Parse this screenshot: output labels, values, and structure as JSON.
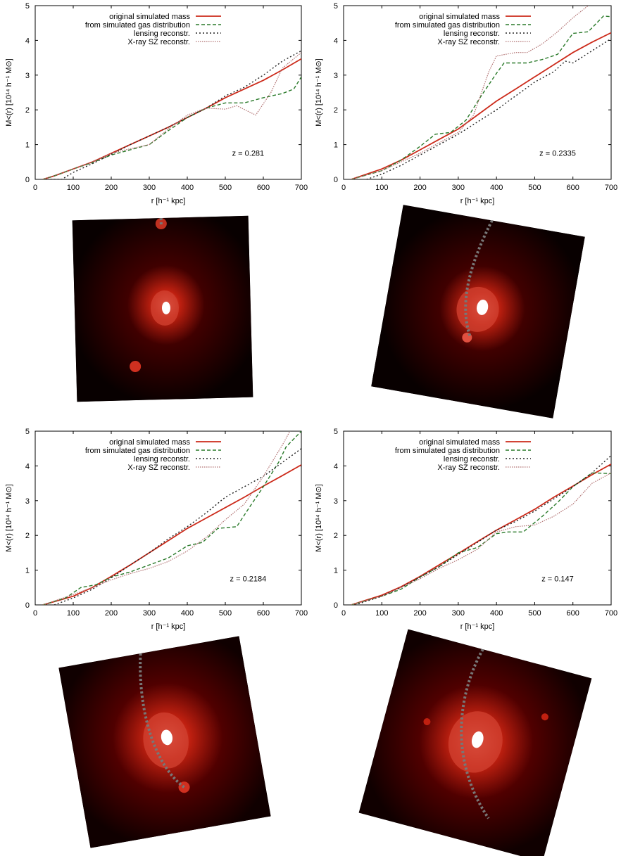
{
  "legend_labels": [
    "original simulated mass",
    "from simulated gas distribution",
    "lensing reconstr.",
    "X-ray SZ reconstr."
  ],
  "series_colors": [
    "#cc2a1a",
    "#2a7a2a",
    "#222222",
    "#b07070"
  ],
  "chart_data": [
    {
      "type": "line",
      "annotation": "z = 0.281",
      "xlabel": "r [h⁻¹ kpc]",
      "ylabel": "M<(r) [10¹⁴ h⁻¹ M⊙]",
      "xlim": [
        0,
        700
      ],
      "ylim": [
        0,
        5
      ],
      "xticks": [
        0,
        100,
        200,
        300,
        400,
        500,
        600,
        700
      ],
      "yticks": [
        0,
        1,
        2,
        3,
        4,
        5
      ],
      "legend": "top-right",
      "series": [
        {
          "name": "original simulated mass",
          "x": [
            20,
            50,
            100,
            150,
            200,
            250,
            300,
            350,
            400,
            450,
            500,
            550,
            600,
            650,
            700
          ],
          "y": [
            0,
            0.1,
            0.3,
            0.5,
            0.75,
            1.0,
            1.25,
            1.5,
            1.78,
            2.05,
            2.35,
            2.6,
            2.85,
            3.15,
            3.47
          ]
        },
        {
          "name": "from simulated gas distribution",
          "x": [
            20,
            50,
            100,
            150,
            200,
            250,
            300,
            350,
            400,
            450,
            500,
            550,
            600,
            650,
            680,
            700
          ],
          "y": [
            0,
            0.1,
            0.3,
            0.48,
            0.7,
            0.85,
            1.0,
            1.4,
            1.78,
            2.05,
            2.2,
            2.2,
            2.35,
            2.47,
            2.6,
            2.95
          ]
        },
        {
          "name": "lensing reconstr.",
          "x": [
            40,
            70,
            100,
            150,
            200,
            250,
            300,
            350,
            400,
            450,
            500,
            550,
            600,
            650,
            700
          ],
          "y": [
            0,
            0,
            0.2,
            0.45,
            0.72,
            1.0,
            1.25,
            1.5,
            1.78,
            2.05,
            2.4,
            2.65,
            3.0,
            3.4,
            3.7
          ]
        },
        {
          "name": "X-ray SZ reconstr.",
          "x": [
            20,
            100,
            150,
            200,
            250,
            300,
            350,
            400,
            450,
            500,
            530,
            580,
            620,
            650,
            700
          ],
          "y": [
            0,
            0.3,
            0.5,
            0.75,
            0.88,
            1.0,
            1.45,
            1.85,
            2.05,
            2.02,
            2.12,
            1.85,
            2.5,
            3.2,
            3.65
          ]
        }
      ]
    },
    {
      "type": "line",
      "annotation": "z = 0.2335",
      "xlabel": "r [h⁻¹ kpc]",
      "ylabel": "M<(r) [10¹⁴ h⁻¹ M⊙]",
      "xlim": [
        0,
        700
      ],
      "ylim": [
        0,
        5
      ],
      "xticks": [
        0,
        100,
        200,
        300,
        400,
        500,
        600,
        700
      ],
      "yticks": [
        0,
        1,
        2,
        3,
        4,
        5
      ],
      "legend": "top-right",
      "series": [
        {
          "name": "original simulated mass",
          "x": [
            20,
            100,
            150,
            200,
            250,
            300,
            350,
            400,
            450,
            500,
            550,
            600,
            650,
            700
          ],
          "y": [
            0,
            0.3,
            0.55,
            0.85,
            1.15,
            1.45,
            1.85,
            2.25,
            2.6,
            2.95,
            3.3,
            3.65,
            3.95,
            4.22
          ]
        },
        {
          "name": "from simulated gas distribution",
          "x": [
            20,
            100,
            150,
            200,
            240,
            280,
            320,
            360,
            400,
            420,
            480,
            520,
            560,
            600,
            640,
            680,
            700
          ],
          "y": [
            0,
            0.25,
            0.55,
            0.95,
            1.3,
            1.35,
            1.7,
            2.4,
            3.05,
            3.35,
            3.35,
            3.45,
            3.6,
            4.2,
            4.25,
            4.7,
            4.68
          ]
        },
        {
          "name": "lensing reconstr.",
          "x": [
            60,
            100,
            150,
            200,
            250,
            300,
            350,
            400,
            450,
            500,
            550,
            580,
            600,
            650,
            700
          ],
          "y": [
            0,
            0.15,
            0.4,
            0.7,
            1.0,
            1.3,
            1.65,
            2.0,
            2.4,
            2.8,
            3.1,
            3.4,
            3.35,
            3.7,
            4.05
          ]
        },
        {
          "name": "X-ray SZ reconstr.",
          "x": [
            20,
            100,
            150,
            200,
            250,
            300,
            340,
            380,
            400,
            450,
            480,
            520,
            560,
            600,
            640,
            700
          ],
          "y": [
            0,
            0.25,
            0.5,
            0.75,
            1.05,
            1.35,
            1.85,
            3.1,
            3.55,
            3.65,
            3.65,
            3.9,
            4.25,
            4.65,
            5.0,
            5.5
          ]
        }
      ]
    },
    {
      "type": "line",
      "annotation": "z = 0.2184",
      "xlabel": "r [h⁻¹ kpc]",
      "ylabel": "M<(r) [10¹⁴ h⁻¹ M⊙]",
      "xlim": [
        0,
        700
      ],
      "ylim": [
        0,
        5
      ],
      "xticks": [
        0,
        100,
        200,
        300,
        400,
        500,
        600,
        700
      ],
      "yticks": [
        0,
        1,
        2,
        3,
        4,
        5
      ],
      "legend": "top-right",
      "series": [
        {
          "name": "original simulated mass",
          "x": [
            20,
            100,
            150,
            200,
            250,
            300,
            350,
            400,
            450,
            500,
            550,
            600,
            650,
            700
          ],
          "y": [
            0,
            0.25,
            0.5,
            0.82,
            1.15,
            1.5,
            1.85,
            2.2,
            2.5,
            2.8,
            3.1,
            3.42,
            3.72,
            4.03
          ]
        },
        {
          "name": "from simulated gas distribution",
          "x": [
            20,
            80,
            100,
            120,
            160,
            200,
            250,
            300,
            350,
            400,
            440,
            480,
            530,
            560,
            600,
            640,
            660,
            700
          ],
          "y": [
            0,
            0.2,
            0.35,
            0.5,
            0.58,
            0.8,
            0.95,
            1.15,
            1.35,
            1.7,
            1.8,
            2.2,
            2.25,
            2.75,
            3.4,
            4.1,
            4.55,
            5.0
          ]
        },
        {
          "name": "lensing reconstr.",
          "x": [
            50,
            100,
            150,
            200,
            250,
            300,
            350,
            400,
            450,
            500,
            550,
            600,
            650,
            700
          ],
          "y": [
            0,
            0.2,
            0.45,
            0.78,
            1.15,
            1.5,
            1.9,
            2.25,
            2.65,
            3.1,
            3.4,
            3.7,
            4.1,
            4.5
          ]
        },
        {
          "name": "X-ray SZ reconstr.",
          "x": [
            20,
            100,
            150,
            200,
            250,
            300,
            350,
            400,
            450,
            500,
            550,
            600,
            650,
            680
          ],
          "y": [
            0,
            0.3,
            0.5,
            0.72,
            0.9,
            1.05,
            1.25,
            1.55,
            1.95,
            2.45,
            2.9,
            3.7,
            4.6,
            5.2
          ]
        }
      ]
    },
    {
      "type": "line",
      "annotation": "z = 0.147",
      "xlabel": "r [h⁻¹ kpc]",
      "ylabel": "M<(r) [10¹⁴ h⁻¹ M⊙]",
      "xlim": [
        0,
        700
      ],
      "ylim": [
        0,
        5
      ],
      "xticks": [
        0,
        100,
        200,
        300,
        400,
        500,
        600,
        700
      ],
      "yticks": [
        0,
        1,
        2,
        3,
        4,
        5
      ],
      "legend": "top-right",
      "series": [
        {
          "name": "original simulated mass",
          "x": [
            20,
            100,
            150,
            200,
            250,
            300,
            350,
            400,
            450,
            500,
            550,
            600,
            650,
            700
          ],
          "y": [
            0,
            0.28,
            0.52,
            0.82,
            1.15,
            1.48,
            1.82,
            2.15,
            2.45,
            2.75,
            3.1,
            3.42,
            3.75,
            4.05
          ]
        },
        {
          "name": "from simulated gas distribution",
          "x": [
            20,
            100,
            150,
            200,
            250,
            300,
            350,
            400,
            430,
            470,
            520,
            560,
            600,
            650,
            700
          ],
          "y": [
            0,
            0.25,
            0.45,
            0.8,
            1.1,
            1.5,
            1.65,
            2.05,
            2.1,
            2.1,
            2.55,
            2.95,
            3.4,
            3.8,
            3.78
          ]
        },
        {
          "name": "lensing reconstr.",
          "x": [
            30,
            100,
            150,
            200,
            250,
            300,
            350,
            400,
            450,
            500,
            550,
            600,
            650,
            700
          ],
          "y": [
            0,
            0.25,
            0.5,
            0.8,
            1.1,
            1.45,
            1.8,
            2.15,
            2.4,
            2.7,
            3.05,
            3.4,
            3.8,
            4.3
          ]
        },
        {
          "name": "X-ray SZ reconstr.",
          "x": [
            20,
            100,
            150,
            200,
            250,
            300,
            350,
            400,
            450,
            500,
            550,
            600,
            650,
            700
          ],
          "y": [
            0,
            0.25,
            0.5,
            0.75,
            1.05,
            1.3,
            1.6,
            2.1,
            2.25,
            2.3,
            2.55,
            2.9,
            3.5,
            3.8
          ]
        }
      ]
    }
  ]
}
